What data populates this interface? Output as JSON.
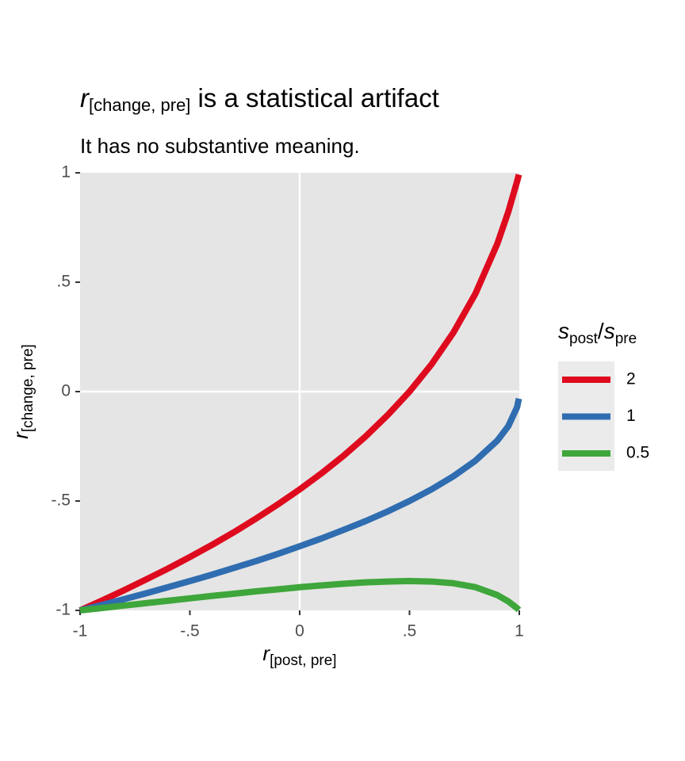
{
  "chart_data": {
    "type": "line",
    "title": {
      "symbol": "r",
      "subscript": "[change, pre]",
      "text": "is a statistical artifact"
    },
    "subtitle": "It has no substantive meaning.",
    "x_label": {
      "symbol": "r",
      "subscript": "[post, pre]"
    },
    "y_label": {
      "symbol": "r",
      "subscript": "[change, pre]"
    },
    "legend_title": {
      "numerator_symbol": "s",
      "numerator_subscript": "post",
      "separator": "/",
      "denominator_symbol": "s",
      "denominator_subscript": "pre"
    },
    "legend_position": "right",
    "x": [
      -1,
      -0.9,
      -0.8,
      -0.7,
      -0.6,
      -0.5,
      -0.4,
      -0.3,
      -0.2,
      -0.1,
      0,
      0.1,
      0.2,
      0.3,
      0.4,
      0.5,
      0.6,
      0.7,
      0.8,
      0.9,
      0.95,
      0.99,
      0.998
    ],
    "series": [
      {
        "name": "2",
        "color": "#de0a1e",
        "values": [
          -1,
          -0.955,
          -0.908,
          -0.859,
          -0.809,
          -0.756,
          -0.701,
          -0.643,
          -0.581,
          -0.516,
          -0.447,
          -0.373,
          -0.293,
          -0.205,
          -0.108,
          0,
          0.124,
          0.27,
          0.447,
          0.676,
          0.822,
          0.961,
          0.992
        ]
      },
      {
        "name": "1",
        "color": "#2f6db0",
        "values": [
          -1,
          -0.975,
          -0.949,
          -0.922,
          -0.894,
          -0.866,
          -0.837,
          -0.806,
          -0.775,
          -0.742,
          -0.707,
          -0.671,
          -0.632,
          -0.592,
          -0.548,
          -0.5,
          -0.447,
          -0.387,
          -0.316,
          -0.224,
          -0.158,
          -0.071,
          -0.032
        ]
      },
      {
        "name": "0.5",
        "color": "#3ea63a",
        "values": [
          -1,
          -0.989,
          -0.978,
          -0.967,
          -0.956,
          -0.945,
          -0.934,
          -0.924,
          -0.913,
          -0.904,
          -0.894,
          -0.886,
          -0.878,
          -0.872,
          -0.868,
          -0.866,
          -0.868,
          -0.876,
          -0.894,
          -0.93,
          -0.959,
          -0.99,
          -0.998
        ]
      }
    ],
    "xlim": [
      -1,
      1
    ],
    "ylim": [
      -1,
      1
    ],
    "xticks": [
      -1,
      {
        "value": -0.5,
        "label": "-.5"
      },
      0,
      {
        "value": 0.5,
        "label": ".5"
      },
      1
    ],
    "yticks": [
      -1,
      {
        "value": -0.5,
        "label": "-.5"
      },
      0,
      {
        "value": 0.5,
        "label": ".5"
      },
      1
    ],
    "vline": 0,
    "hline": 0
  }
}
